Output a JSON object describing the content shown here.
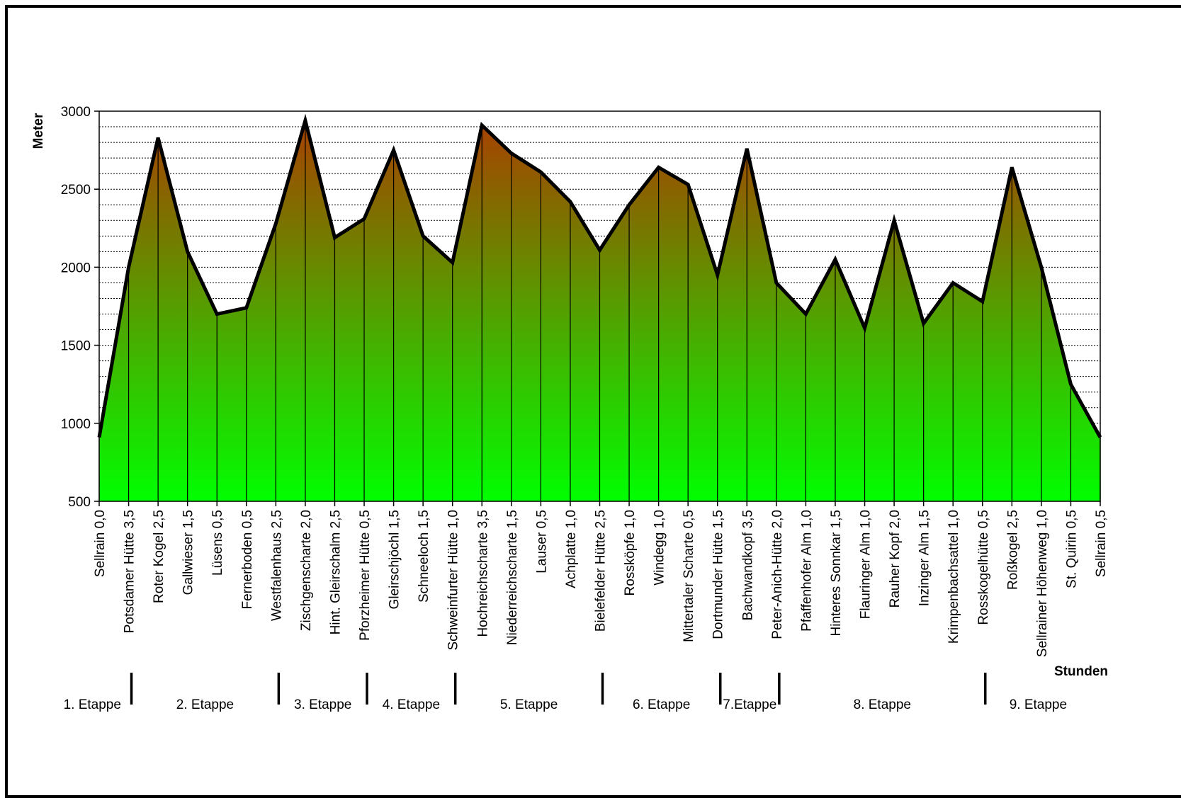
{
  "chart_data": {
    "type": "area",
    "ylabel": "Meter",
    "xlabel": "Stunden",
    "ylim": [
      500,
      3000
    ],
    "yticks": [
      500,
      1000,
      1500,
      2000,
      2500,
      3000
    ],
    "ytick_labels": [
      "500",
      "1000",
      "1500",
      "2000",
      "2500",
      "3000"
    ],
    "grid": true,
    "colors": {
      "top": "#a84000",
      "bottom": "#00ff00",
      "line": "#000000"
    },
    "categories": [
      "Sellrain 0,0",
      "Potsdamer Hütte 3,5",
      "Roter Kogel 2,5",
      "Gallwieser 1,5",
      "Lüsens 0,5",
      "Fernerboden 0,5",
      "Westfalenhaus 2,5",
      "Zischgenscharte 2,0",
      "Hint. Gleirschalm 2,5",
      "Pforzheimer Hütte 0,5",
      "Gleirschjöchl 1,5",
      "Schneeloch 1,5",
      "Schweinfurter Hütte 1,0",
      "Hochreichscharte 3,5",
      "Niederreichscharte 1,5",
      "Lauser 0,5",
      "Achplatte 1,0",
      "Bielefelder Hütte 2,5",
      "Rossköpfe 1,0",
      "Windegg 1,0",
      "Mittertaler Scharte 0,5",
      "Dortmunder Hütte 1,5",
      "Bachwandkopf 3,5",
      "Peter-Anich-Hütte 2,0",
      "Pfaffenhofer Alm 1,0",
      "Hinteres Sonnkar 1,5",
      "Flauringer Alm 1,0",
      "Rauher Kopf 2,0",
      "Inzinger Alm 1,5",
      "Krimpenbachsattel 1,0",
      "Rosskogelhütte 0,5",
      "Roßkogel 2,5",
      "Sellrainer Höhenweg 1,0",
      "St. Quirin 0,5",
      "Sellrain 0,5"
    ],
    "values": [
      910,
      2000,
      2830,
      2100,
      1700,
      1740,
      2280,
      2940,
      2190,
      2310,
      2750,
      2200,
      2030,
      2910,
      2730,
      2610,
      2420,
      2110,
      2400,
      2640,
      2530,
      1950,
      2760,
      1900,
      1700,
      2050,
      1610,
      2300,
      1640,
      1900,
      1780,
      2640,
      2000,
      1250,
      910
    ],
    "stages": [
      {
        "label": "1. Etappe",
        "end_index": 1
      },
      {
        "label": "2. Etappe",
        "end_index": 6
      },
      {
        "label": "3. Etappe",
        "end_index": 9
      },
      {
        "label": "4. Etappe",
        "end_index": 12
      },
      {
        "label": "5. Etappe",
        "end_index": 17
      },
      {
        "label": "6. Etappe",
        "end_index": 21
      },
      {
        "label": "7.Etappe",
        "end_index": 23
      },
      {
        "label": "8. Etappe",
        "end_index": 30
      },
      {
        "label": "9. Etappe",
        "end_index": 34
      }
    ]
  }
}
